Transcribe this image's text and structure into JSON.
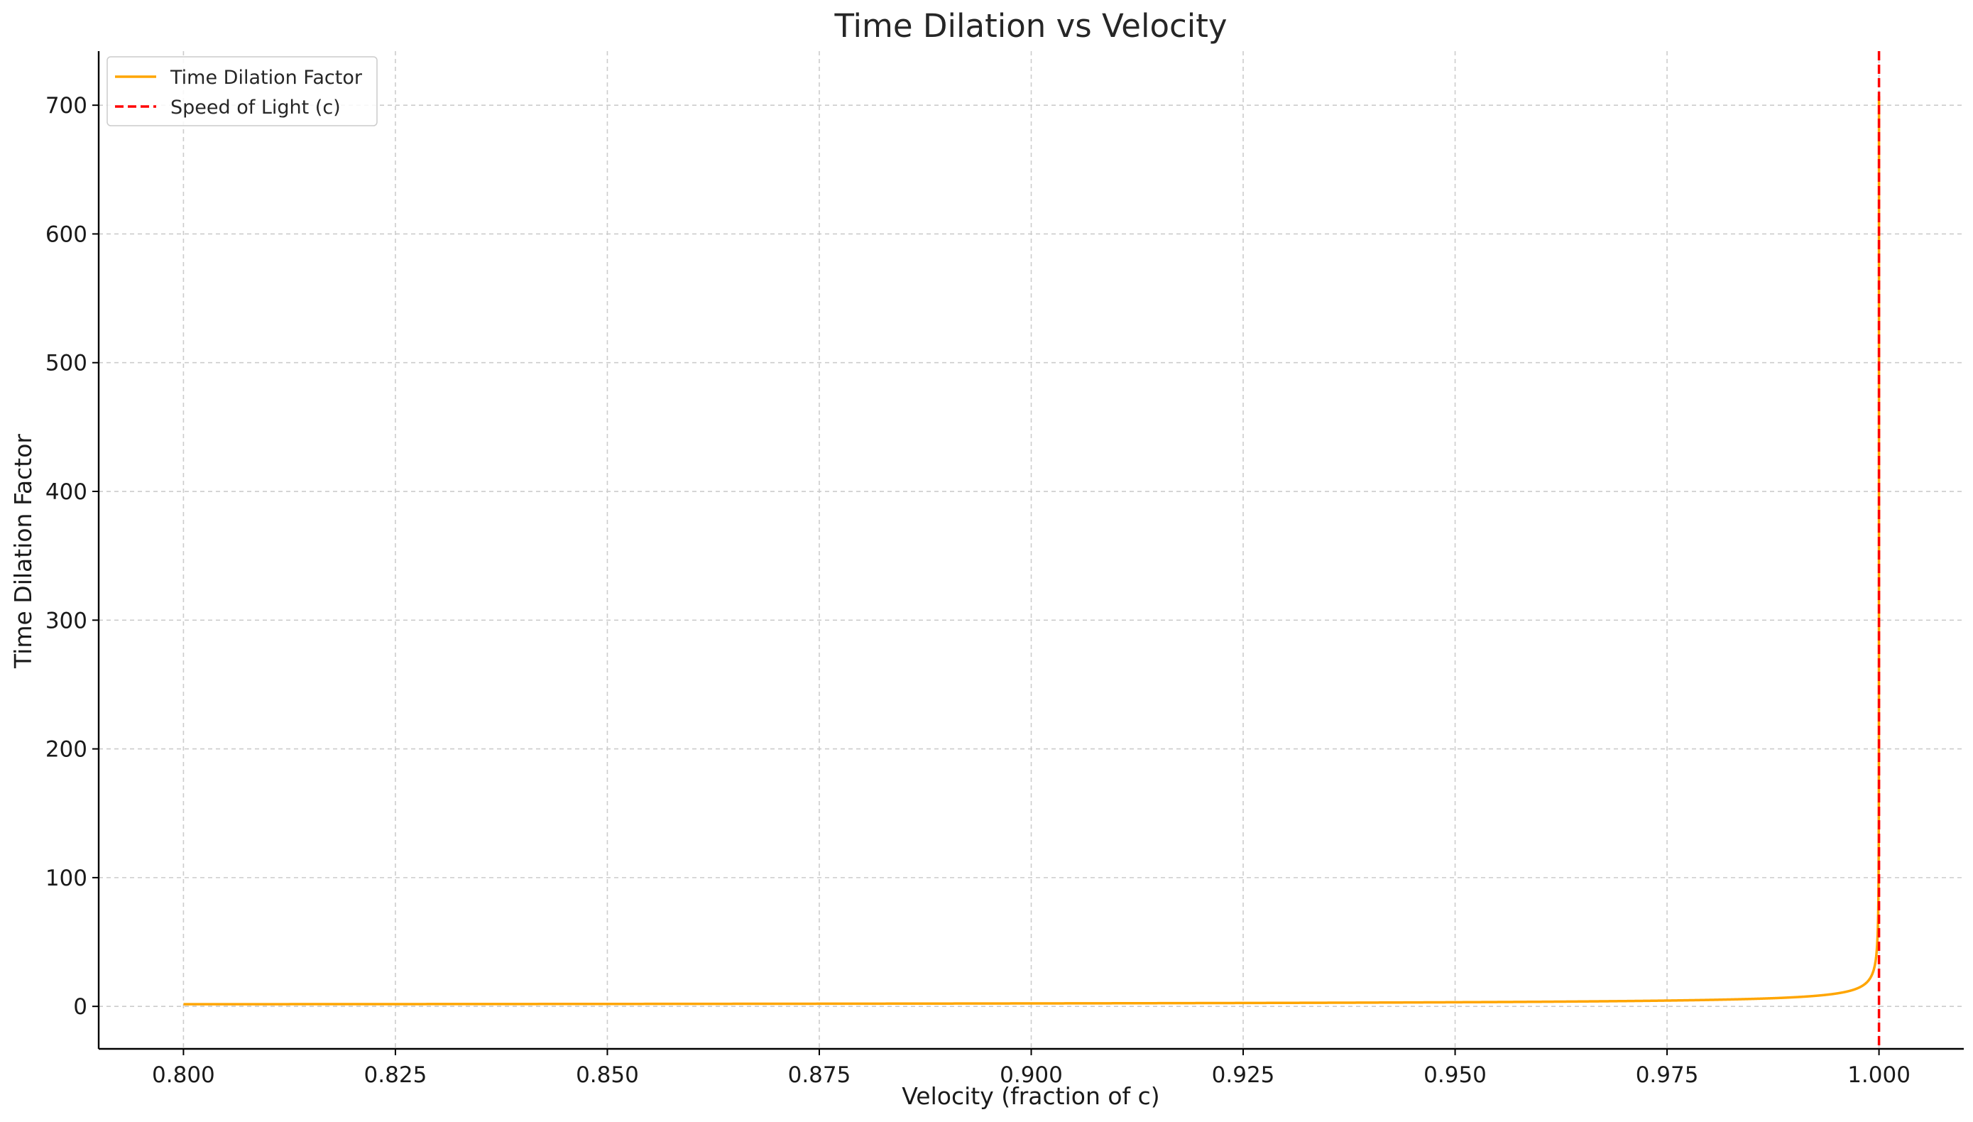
{
  "chart_data": {
    "type": "line",
    "title": "Time Dilation vs Velocity",
    "xlabel": "Velocity (fraction of c)",
    "ylabel": "Time Dilation Factor",
    "xlim": [
      0.79,
      1.01
    ],
    "ylim": [
      -33,
      742
    ],
    "xticks": [
      "0.800",
      "0.825",
      "0.850",
      "0.875",
      "0.900",
      "0.925",
      "0.950",
      "0.975",
      "1.000"
    ],
    "yticks": [
      "0",
      "100",
      "200",
      "300",
      "400",
      "500",
      "600",
      "700"
    ],
    "grid": true,
    "legend_position": "top-left",
    "series": [
      {
        "name": "Time Dilation Factor",
        "color": "#FFA500",
        "style": "solid",
        "function": "1/sqrt(1-v^2)",
        "x_range": [
          0.8,
          0.999999
        ]
      },
      {
        "name": "Speed of Light (c)",
        "color": "#FF0000",
        "style": "dashed",
        "x": 1.0
      }
    ]
  }
}
